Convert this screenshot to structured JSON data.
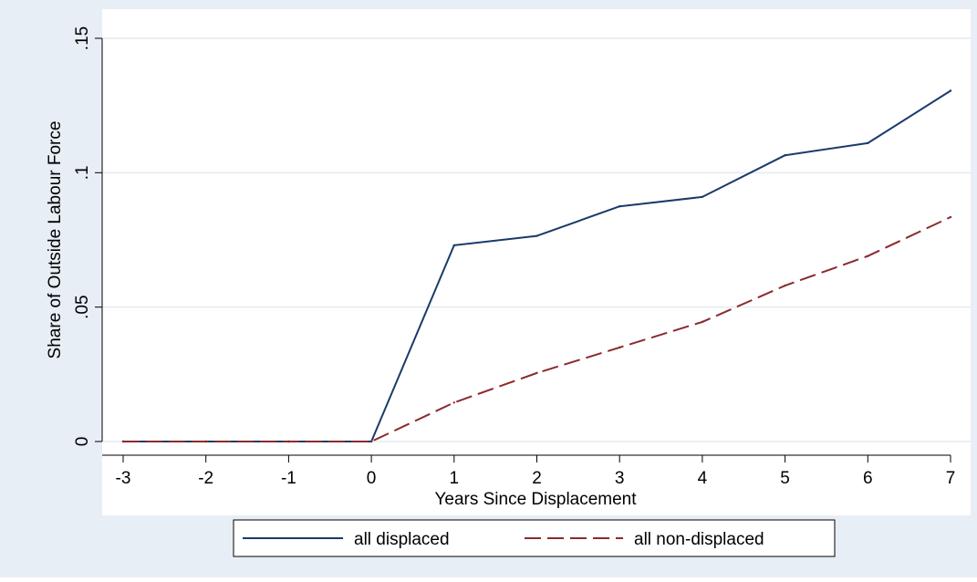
{
  "chart_data": {
    "type": "line",
    "title": "",
    "xlabel": "Years Since Displacement",
    "ylabel": "Share of Outside Labour Force",
    "x": [
      -3,
      -2,
      -1,
      0,
      1,
      2,
      3,
      4,
      5,
      6,
      7
    ],
    "xlim": [
      -3,
      7
    ],
    "ylim": [
      0,
      0.15
    ],
    "x_ticks": [
      -3,
      -2,
      -1,
      0,
      1,
      2,
      3,
      4,
      5,
      6,
      7
    ],
    "x_tick_labels": [
      "-3",
      "-2",
      "-1",
      "0",
      "1",
      "2",
      "3",
      "4",
      "5",
      "6",
      "7"
    ],
    "y_ticks": [
      0,
      0.05,
      0.1,
      0.15
    ],
    "y_tick_labels": [
      "0",
      ".05",
      ".1",
      ".15"
    ],
    "grid": true,
    "legend_position": "bottom",
    "series": [
      {
        "name": "all displaced",
        "color": "#1a3a6b",
        "style": "solid",
        "values": [
          0,
          0,
          0,
          0,
          0.073,
          0.0765,
          0.0875,
          0.091,
          0.1065,
          0.111,
          0.1305
        ]
      },
      {
        "name": "all non-displaced",
        "color": "#8b2a2e",
        "style": "dashed",
        "values": [
          0,
          0,
          0,
          0,
          0.0145,
          0.0255,
          0.035,
          0.0445,
          0.058,
          0.069,
          0.0835
        ]
      }
    ],
    "colors": {
      "outer_background": "#e8eef5",
      "plot_background": "#ffffff",
      "grid": "#e4ebf2",
      "axis": "#000000"
    }
  }
}
